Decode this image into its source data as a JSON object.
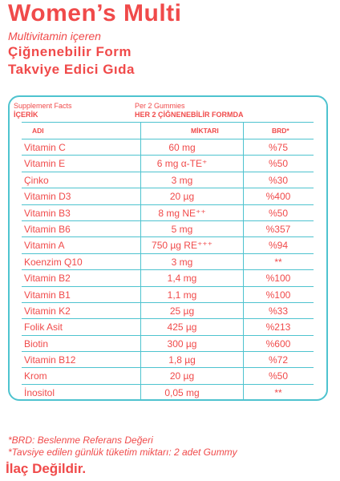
{
  "title": "Women’s Multi",
  "subtitle": "Multivitamin içeren",
  "form_lines": [
    "Çiğnenebilir Form",
    "Takviye Edici Gıda"
  ],
  "facts": {
    "left_line1": "Supplement Facts",
    "left_line2": "İÇERİK",
    "right_line1": "Per 2 Gummies",
    "right_line2": "HER 2 ÇİĞNENEBİLİR FORMDA"
  },
  "columns": {
    "name": "ADI",
    "amount": "MİKTARI",
    "brd": "BRD*"
  },
  "rows": [
    {
      "name": "Vitamin C",
      "amount": "60 mg",
      "brd": "%75"
    },
    {
      "name": "Vitamin E",
      "amount": "6 mg α-TE⁺",
      "brd": "%50"
    },
    {
      "name": "Çinko",
      "amount": "3 mg",
      "brd": "%30"
    },
    {
      "name": "Vitamin D3",
      "amount": "20 µg",
      "brd": "%400"
    },
    {
      "name": "Vitamin B3",
      "amount": "8 mg NE⁺⁺",
      "brd": "%50"
    },
    {
      "name": "Vitamin B6",
      "amount": "5 mg",
      "brd": "%357"
    },
    {
      "name": "Vitamin A",
      "amount": "750 µg RE⁺⁺⁺",
      "brd": "%94"
    },
    {
      "name": "Koenzim Q10",
      "amount": "3 mg",
      "brd": "**"
    },
    {
      "name": "Vitamin B2",
      "amount": "1,4 mg",
      "brd": "%100"
    },
    {
      "name": "Vitamin B1",
      "amount": "1,1 mg",
      "brd": "%100"
    },
    {
      "name": "Vitamin K2",
      "amount": "25 µg",
      "brd": "%33"
    },
    {
      "name": "Folik Asit",
      "amount": "425 µg",
      "brd": "%213"
    },
    {
      "name": "Biotin",
      "amount": "300 µg",
      "brd": "%600"
    },
    {
      "name": "Vitamin B12",
      "amount": "1,8 µg",
      "brd": "%72"
    },
    {
      "name": "Krom",
      "amount": "20 µg",
      "brd": "%50"
    },
    {
      "name": "İnositol",
      "amount": "0,05 mg",
      "brd": "**"
    }
  ],
  "footnotes": [
    "*BRD: Beslenme Referans Değeri",
    "*Tavsiye edilen günlük tüketim miktarı: 2 adet Gummy"
  ],
  "warning": "İlaç Değildir.",
  "colors": {
    "accent": "#f04a4a",
    "border": "#4ec3cf"
  }
}
